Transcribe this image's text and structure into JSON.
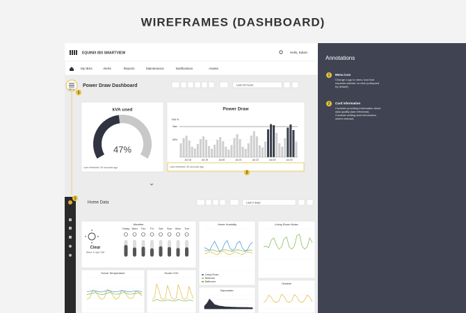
{
  "title": "WIREFRAMES (DASHBOARD)",
  "app": {
    "brand": "EQUINIX IBX SMARTVIEW",
    "user": "Hello, Edwin",
    "tabs": [
      "My IBXs",
      "Alerts",
      "Reports",
      "Maintenance",
      "Notifications",
      "Assets"
    ]
  },
  "dashboard": {
    "title": "Power Draw Dashboard",
    "time_range": "Last 24 hours",
    "menu_label": "Menu",
    "menu_badge": "1",
    "kva_card": {
      "title": "kVA used",
      "gauge_value": 47,
      "gauge_label": "47%",
      "footer": "Last refreshed: 50 seconds ago"
    },
    "power_card": {
      "title": "Power Draw",
      "y_label": "kVA %",
      "badge": "2",
      "max_line": {
        "value": 88,
        "label": "Max"
      },
      "yticks": [
        {
          "value": 50,
          "label": "50%"
        }
      ],
      "ylim": [
        0,
        100
      ],
      "x_labels": [
        "Jul 18",
        "Jul 19",
        "Jul 20",
        "Jul 21",
        "Jul 22",
        "Jul 23",
        "Jul 24"
      ],
      "values": [
        40,
        55,
        62,
        48,
        30,
        25,
        38,
        52,
        60,
        50,
        32,
        24,
        36,
        50,
        58,
        46,
        30,
        22,
        35,
        55,
        66,
        52,
        30,
        24,
        40,
        62,
        75,
        60,
        34,
        28,
        45,
        80,
        95,
        92,
        70,
        40,
        30,
        55,
        85,
        94,
        78,
        45
      ],
      "footer": "Last refreshed: 50 seconds ago"
    }
  },
  "home": {
    "title": "Home Data",
    "time_range": "Last 2 days",
    "badge": "1",
    "weather": {
      "title": "Weather",
      "condition": "Clear",
      "detail": "Wind: 5 mph SW",
      "days": [
        "Today",
        "Wed",
        "Thu",
        "Fri",
        "Sat",
        "Sun",
        "Mon",
        "Tue"
      ],
      "levels": [
        70,
        55,
        60,
        50,
        62,
        58,
        52,
        56
      ]
    },
    "panels": [
      {
        "title": "Home Humidity",
        "legend": [
          "Living Room",
          "Bedroom",
          "Bathroom"
        ],
        "ylim": [
          0,
          100
        ],
        "series": [
          {
            "color": "#3b8ed6",
            "values": [
              55,
              52,
              48,
              60,
              70,
              58,
              45,
              50,
              65,
              72,
              55,
              48,
              52,
              66,
              70,
              54,
              47,
              50,
              62,
              68
            ]
          },
          {
            "color": "#e0b93a",
            "values": [
              40,
              42,
              45,
              44,
              40,
              38,
              42,
              46,
              44,
              40,
              38,
              41,
              45,
              43,
              40,
              39,
              42,
              45,
              44,
              41
            ]
          },
          {
            "color": "#7ab648",
            "values": [
              48,
              47,
              49,
              50,
              48,
              46,
              47,
              49,
              50,
              48,
              47,
              46,
              48,
              50,
              49,
              47,
              46,
              48,
              49,
              48
            ]
          }
        ]
      },
      {
        "title": "Living Room Noise",
        "legend": [],
        "ylim": [
          0,
          100
        ],
        "series": [
          {
            "color": "#7ab648",
            "values": [
              60,
              62,
              58,
              75,
              80,
              65,
              55,
              60,
              78,
              82,
              60,
              55,
              62,
              85,
              88,
              62,
              55,
              60,
              80,
              70
            ]
          }
        ]
      },
      {
        "title": "Home Temperature",
        "legend": [],
        "ylim": [
          0,
          100
        ],
        "series": [
          {
            "color": "#e0b93a",
            "values": [
              30,
              35,
              60,
              55,
              40,
              30,
              35,
              62,
              58,
              42,
              30,
              36,
              60,
              55,
              40,
              32,
              36,
              58,
              52,
              40
            ]
          },
          {
            "color": "#7ab648",
            "values": [
              45,
              48,
              50,
              52,
              48,
              45,
              47,
              50,
              52,
              49,
              46,
              48,
              51,
              52,
              48,
              46,
              48,
              50,
              51,
              48
            ]
          },
          {
            "color": "#3b8ed6",
            "values": [
              55,
              56,
              58,
              57,
              55,
              54,
              56,
              58,
              57,
              55,
              54,
              56,
              58,
              57,
              55,
              54,
              56,
              57,
              56,
              55
            ]
          }
        ]
      },
      {
        "title": "Home CO2",
        "legend": [],
        "ylim": [
          0,
          100
        ],
        "series": [
          {
            "color": "#e0b93a",
            "values": [
              30,
              35,
              80,
              60,
              35,
              30,
              32,
              75,
              55,
              34,
              30,
              33,
              78,
              58,
              35,
              30,
              34,
              72,
              50,
              33
            ]
          },
          {
            "color": "#7ab648",
            "values": [
              25,
              26,
              30,
              28,
              26,
              25,
              26,
              29,
              28,
              26,
              25,
              26,
              30,
              28,
              26,
              25,
              26,
              29,
              27,
              26
            ]
          }
        ]
      },
      {
        "title": "Barometer",
        "legend": [],
        "ylim": [
          0,
          100
        ],
        "series": [
          {
            "color": "#2f3440",
            "values": [
              20,
              40,
              70,
              50,
              30,
              25,
              20,
              18,
              15,
              14,
              13,
              12,
              12,
              11,
              11,
              10,
              10,
              10,
              9,
              9
            ]
          }
        ]
      },
      {
        "title": "Outside",
        "legend": [],
        "ylim": [
          0,
          100
        ],
        "series": [
          {
            "color": "#e0b93a",
            "values": [
              30,
              40,
              65,
              55,
              35,
              30,
              38,
              70,
              60,
              36,
              30,
              40,
              68,
              58,
              35,
              30,
              42,
              66,
              56,
              34
            ]
          }
        ]
      }
    ]
  },
  "annotations": {
    "title": "Annotations",
    "items": [
      {
        "number": "1",
        "heading": "Menu icon",
        "lines": [
          "Change Logo to menu icon that",
          "expands sidebar on click (collapsed",
          "by default)"
        ]
      },
      {
        "number": "2",
        "heading": "Card information",
        "lines": [
          "Consider providing information about",
          "data quality (last refreshed).",
          "Consider adding start information",
          "where relevant."
        ]
      }
    ]
  }
}
